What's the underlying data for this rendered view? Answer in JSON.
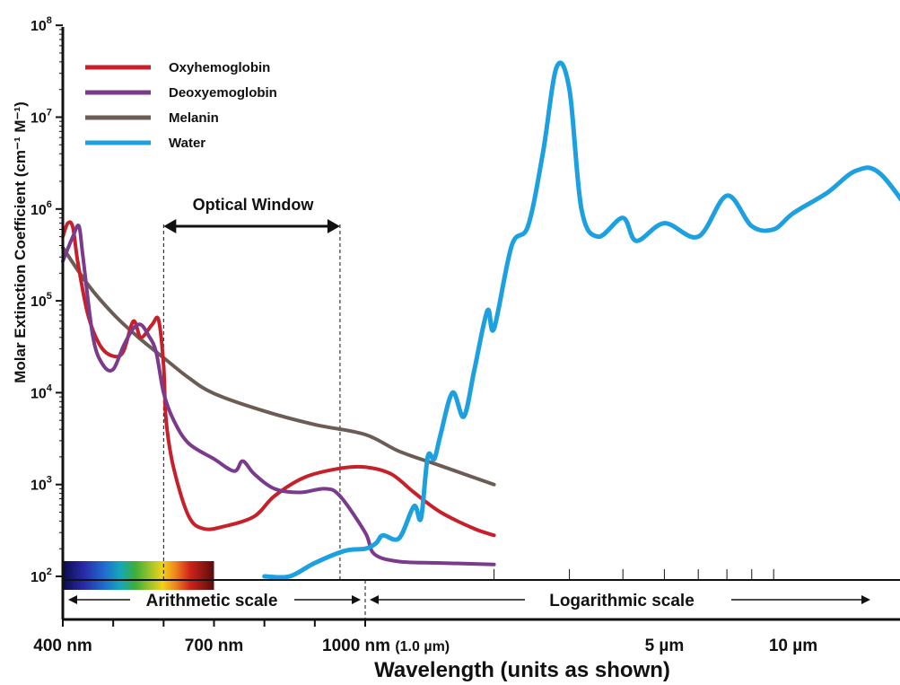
{
  "chart_data": {
    "type": "line",
    "title": "",
    "ylabel": "Molar Extinction Coefficient (cm⁻¹ M⁻¹)",
    "xlabel": "Wavelength (units as shown)",
    "y_scale": "log",
    "ylim": [
      100,
      100000000
    ],
    "y_ticks": [
      {
        "base": "10",
        "exp": "2"
      },
      {
        "base": "10",
        "exp": "3"
      },
      {
        "base": "10",
        "exp": "4"
      },
      {
        "base": "10",
        "exp": "5"
      },
      {
        "base": "10",
        "exp": "6"
      },
      {
        "base": "10",
        "exp": "7"
      },
      {
        "base": "10",
        "exp": "8"
      }
    ],
    "x_scale": "arithmetic 400-1000 nm, logarithmic above 1000 nm",
    "x_ticks": [
      {
        "label": "400 nm",
        "value_nm": 400
      },
      {
        "label": "700 nm",
        "value_nm": 700
      },
      {
        "label": "1000 nm",
        "value_nm": 1000,
        "suffix": "(1.0 µm)"
      },
      {
        "label": "5 µm",
        "value_nm": 5000
      },
      {
        "label": "10 µm",
        "value_nm": 10000
      }
    ],
    "annotations": {
      "optical_window": "Optical Window",
      "optical_window_range_nm": [
        600,
        950
      ],
      "arithmetic_scale": "Arithmetic scale",
      "logarithmic_scale": "Logarithmic scale"
    },
    "legend_position": "top-left",
    "series": [
      {
        "name": "Oxyhemoglobin",
        "color": "#c8202a",
        "points": [
          [
            400,
            500000
          ],
          [
            410,
            700000
          ],
          [
            420,
            630000
          ],
          [
            430,
            260000
          ],
          [
            450,
            70000
          ],
          [
            475,
            32000
          ],
          [
            500,
            25000
          ],
          [
            520,
            28000
          ],
          [
            540,
            60000
          ],
          [
            555,
            40000
          ],
          [
            577,
            55000
          ],
          [
            590,
            62000
          ],
          [
            600,
            20000
          ],
          [
            605,
            5000
          ],
          [
            620,
            1500
          ],
          [
            650,
            450
          ],
          [
            680,
            330
          ],
          [
            720,
            350
          ],
          [
            780,
            450
          ],
          [
            820,
            750
          ],
          [
            880,
            1200
          ],
          [
            950,
            1500
          ],
          [
            1000,
            1550
          ],
          [
            1150,
            1300
          ],
          [
            1300,
            820
          ],
          [
            1500,
            500
          ],
          [
            1800,
            330
          ],
          [
            2000,
            280
          ]
        ]
      },
      {
        "name": "Deoxyemoglobin",
        "color": "#7a3b8c",
        "points": [
          [
            400,
            270000
          ],
          [
            420,
            500000
          ],
          [
            432,
            650000
          ],
          [
            440,
            300000
          ],
          [
            460,
            40000
          ],
          [
            480,
            20000
          ],
          [
            500,
            18000
          ],
          [
            520,
            32000
          ],
          [
            540,
            50000
          ],
          [
            555,
            55000
          ],
          [
            570,
            42000
          ],
          [
            585,
            28000
          ],
          [
            600,
            10000
          ],
          [
            620,
            5000
          ],
          [
            650,
            2800
          ],
          [
            700,
            1900
          ],
          [
            740,
            1400
          ],
          [
            757,
            1800
          ],
          [
            780,
            1300
          ],
          [
            820,
            900
          ],
          [
            870,
            820
          ],
          [
            920,
            900
          ],
          [
            950,
            750
          ],
          [
            1000,
            300
          ],
          [
            1050,
            175
          ],
          [
            1200,
            145
          ],
          [
            1500,
            140
          ],
          [
            2000,
            135
          ]
        ]
      },
      {
        "name": "Melanin",
        "color": "#6b5d56",
        "points": [
          [
            400,
            380000
          ],
          [
            450,
            150000
          ],
          [
            500,
            72000
          ],
          [
            550,
            40000
          ],
          [
            600,
            24000
          ],
          [
            650,
            14500
          ],
          [
            700,
            9800
          ],
          [
            800,
            6300
          ],
          [
            900,
            4500
          ],
          [
            1000,
            3500
          ],
          [
            1200,
            2300
          ],
          [
            1500,
            1600
          ],
          [
            2000,
            1000
          ]
        ]
      },
      {
        "name": "Water",
        "color": "#1da0e0",
        "points": [
          [
            800,
            100
          ],
          [
            850,
            100
          ],
          [
            900,
            140
          ],
          [
            960,
            190
          ],
          [
            1000,
            200
          ],
          [
            1060,
            230
          ],
          [
            1100,
            280
          ],
          [
            1200,
            260
          ],
          [
            1300,
            580
          ],
          [
            1350,
            430
          ],
          [
            1400,
            2000
          ],
          [
            1450,
            1900
          ],
          [
            1500,
            3500
          ],
          [
            1600,
            10000
          ],
          [
            1700,
            5500
          ],
          [
            1800,
            18000
          ],
          [
            1930,
            78000
          ],
          [
            2000,
            50000
          ],
          [
            2200,
            400000
          ],
          [
            2400,
            650000
          ],
          [
            2600,
            4000000
          ],
          [
            2800,
            35000000
          ],
          [
            3000,
            20000000
          ],
          [
            3200,
            1000000
          ],
          [
            3500,
            500000
          ],
          [
            4000,
            800000
          ],
          [
            4300,
            450000
          ],
          [
            5000,
            700000
          ],
          [
            6000,
            500000
          ],
          [
            7000,
            1400000
          ],
          [
            8000,
            650000
          ],
          [
            9000,
            600000
          ],
          [
            10000,
            900000
          ],
          [
            12000,
            1500000
          ],
          [
            14000,
            2600000
          ],
          [
            16000,
            2400000
          ],
          [
            20000,
            600000
          ]
        ]
      }
    ]
  }
}
